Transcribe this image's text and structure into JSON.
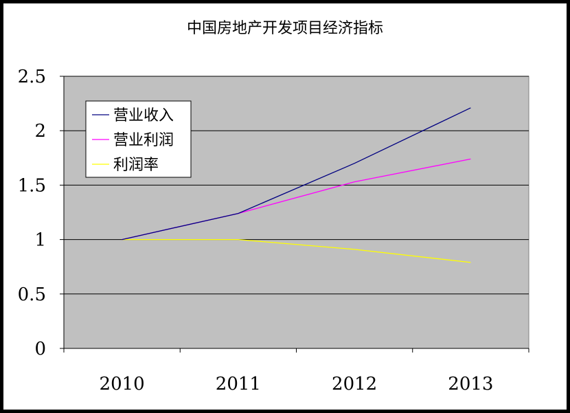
{
  "chart_data": {
    "type": "line",
    "title": "中国房地产开发项目经济指标",
    "categories": [
      "2010",
      "2011",
      "2012",
      "2013"
    ],
    "series": [
      {
        "name": "营业收入",
        "color": "#000080",
        "values": [
          1.0,
          1.24,
          1.7,
          2.21
        ]
      },
      {
        "name": "营业利润",
        "color": "#ff00ff",
        "values": [
          1.0,
          1.24,
          1.53,
          1.74
        ]
      },
      {
        "name": "利润率",
        "color": "#ffff00",
        "values": [
          1.0,
          1.0,
          0.91,
          0.79
        ]
      }
    ],
    "y_ticks": [
      "0",
      "0.5",
      "1",
      "1.5",
      "2",
      "2.5"
    ],
    "ylim": [
      0,
      2.5
    ],
    "grid": true,
    "plot_background": "#c0c0c0",
    "legend_position": "top-left"
  }
}
